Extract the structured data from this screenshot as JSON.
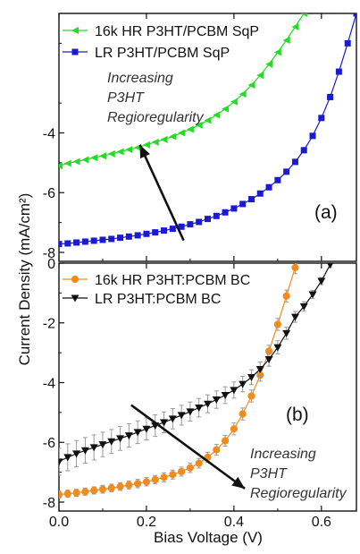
{
  "figure": {
    "xlabel": "Bias Voltage (V)",
    "ylabel": "Current Density (mA/cm²)",
    "x_ticks": [
      "0.0",
      "0.2",
      "0.4",
      "0.6"
    ]
  },
  "chart_data": [
    {
      "type": "line",
      "panel_label": "(a)",
      "annotation": [
        "Increasing",
        "P3HT",
        "Regioregularity"
      ],
      "xlim": [
        0,
        0.68
      ],
      "ylim": [
        -8.3,
        0
      ],
      "y_ticks": [
        "-4",
        "-6",
        "-8"
      ],
      "arrow": {
        "from": [
          0.285,
          -7.6
        ],
        "to": [
          0.185,
          -4.4
        ]
      },
      "legend_position": "top-right",
      "grid": false,
      "series": [
        {
          "name": "16k HR P3HT/PCBM SqP",
          "color": "#22dd22",
          "marker": "triangle-left",
          "x": [
            0.0,
            0.02,
            0.04,
            0.06,
            0.08,
            0.1,
            0.12,
            0.14,
            0.16,
            0.18,
            0.2,
            0.22,
            0.24,
            0.26,
            0.28,
            0.3,
            0.32,
            0.34,
            0.36,
            0.38,
            0.4,
            0.42,
            0.44,
            0.46,
            0.48,
            0.5,
            0.52,
            0.54,
            0.56
          ],
          "y": [
            -5.1,
            -5.02,
            -4.96,
            -4.9,
            -4.83,
            -4.77,
            -4.7,
            -4.63,
            -4.56,
            -4.49,
            -4.4,
            -4.31,
            -4.22,
            -4.12,
            -4.0,
            -3.88,
            -3.74,
            -3.58,
            -3.4,
            -3.2,
            -2.96,
            -2.7,
            -2.4,
            -2.07,
            -1.7,
            -1.3,
            -0.9,
            -0.45,
            0.0
          ]
        },
        {
          "name": "LR P3HT/PCBM SqP",
          "color": "#1a1ad0",
          "marker": "square",
          "x": [
            0.0,
            0.02,
            0.04,
            0.06,
            0.08,
            0.1,
            0.12,
            0.14,
            0.16,
            0.18,
            0.2,
            0.22,
            0.24,
            0.26,
            0.28,
            0.3,
            0.32,
            0.34,
            0.36,
            0.38,
            0.4,
            0.42,
            0.44,
            0.46,
            0.48,
            0.5,
            0.52,
            0.54,
            0.56,
            0.58,
            0.6,
            0.62,
            0.64,
            0.66,
            0.68
          ],
          "y": [
            -7.72,
            -7.7,
            -7.67,
            -7.64,
            -7.61,
            -7.58,
            -7.55,
            -7.51,
            -7.47,
            -7.43,
            -7.38,
            -7.33,
            -7.27,
            -7.21,
            -7.14,
            -7.06,
            -6.98,
            -6.88,
            -6.78,
            -6.66,
            -6.53,
            -6.38,
            -6.22,
            -6.03,
            -5.82,
            -5.58,
            -5.3,
            -4.97,
            -4.58,
            -4.1,
            -3.5,
            -2.8,
            -1.95,
            -1.0,
            0.0
          ]
        }
      ]
    },
    {
      "type": "line",
      "panel_label": "(b)",
      "annotation": [
        "Increasing",
        "P3HT",
        "Regioregularity"
      ],
      "xlim": [
        0,
        0.68
      ],
      "ylim": [
        -8.3,
        0
      ],
      "y_ticks": [
        "0",
        "-2",
        "-4",
        "-6",
        "-8"
      ],
      "arrow": {
        "from": [
          0.165,
          -4.75
        ],
        "to": [
          0.425,
          -7.55
        ]
      },
      "legend_position": "top-right",
      "grid": false,
      "series": [
        {
          "name": "16k HR P3HT:PCBM BC",
          "color": "#f08c1e",
          "marker": "circle",
          "x": [
            0.0,
            0.02,
            0.04,
            0.06,
            0.08,
            0.1,
            0.12,
            0.14,
            0.16,
            0.18,
            0.2,
            0.22,
            0.24,
            0.26,
            0.28,
            0.3,
            0.32,
            0.34,
            0.36,
            0.38,
            0.4,
            0.42,
            0.44,
            0.46,
            0.48,
            0.5,
            0.52,
            0.54,
            0.56
          ],
          "y": [
            -7.75,
            -7.72,
            -7.69,
            -7.65,
            -7.61,
            -7.57,
            -7.53,
            -7.48,
            -7.43,
            -7.38,
            -7.32,
            -7.25,
            -7.17,
            -7.08,
            -6.98,
            -6.85,
            -6.7,
            -6.5,
            -6.25,
            -5.95,
            -5.55,
            -5.05,
            -4.45,
            -3.75,
            -2.95,
            -2.05,
            -1.1,
            -0.15,
            0.6
          ],
          "err": [
            0.12,
            0.12,
            0.12,
            0.12,
            0.12,
            0.13,
            0.13,
            0.13,
            0.13,
            0.14,
            0.14,
            0.14,
            0.15,
            0.15,
            0.15,
            0.16,
            0.16,
            0.17,
            0.18,
            0.18,
            0.2,
            0.2,
            0.2,
            0.2,
            0.2,
            0.2,
            0.2,
            0.2,
            0.2
          ]
        },
        {
          "name": "LR P3HT:PCBM BC",
          "color": "#111111",
          "marker": "triangle-down",
          "x": [
            0.0,
            0.02,
            0.04,
            0.06,
            0.08,
            0.1,
            0.12,
            0.14,
            0.16,
            0.18,
            0.2,
            0.22,
            0.24,
            0.26,
            0.28,
            0.3,
            0.32,
            0.34,
            0.36,
            0.38,
            0.4,
            0.42,
            0.44,
            0.46,
            0.48,
            0.5,
            0.52,
            0.54,
            0.56,
            0.58,
            0.6,
            0.62
          ],
          "y": [
            -6.65,
            -6.5,
            -6.38,
            -6.27,
            -6.17,
            -6.07,
            -5.97,
            -5.87,
            -5.77,
            -5.66,
            -5.55,
            -5.44,
            -5.33,
            -5.21,
            -5.09,
            -4.97,
            -4.84,
            -4.71,
            -4.57,
            -4.42,
            -4.25,
            -4.05,
            -3.82,
            -3.55,
            -3.22,
            -2.82,
            -2.35,
            -1.8,
            -1.45,
            -1.05,
            -0.6,
            -0.05
          ],
          "err": [
            0.45,
            0.45,
            0.44,
            0.43,
            0.42,
            0.41,
            0.4,
            0.4,
            0.39,
            0.38,
            0.37,
            0.36,
            0.35,
            0.34,
            0.33,
            0.32,
            0.31,
            0.3,
            0.29,
            0.28,
            0.27,
            0.26,
            0.25,
            0.24,
            0.23,
            0.22,
            0.2,
            0.18,
            0.16,
            0.14,
            0.12,
            0.1
          ]
        }
      ]
    }
  ]
}
